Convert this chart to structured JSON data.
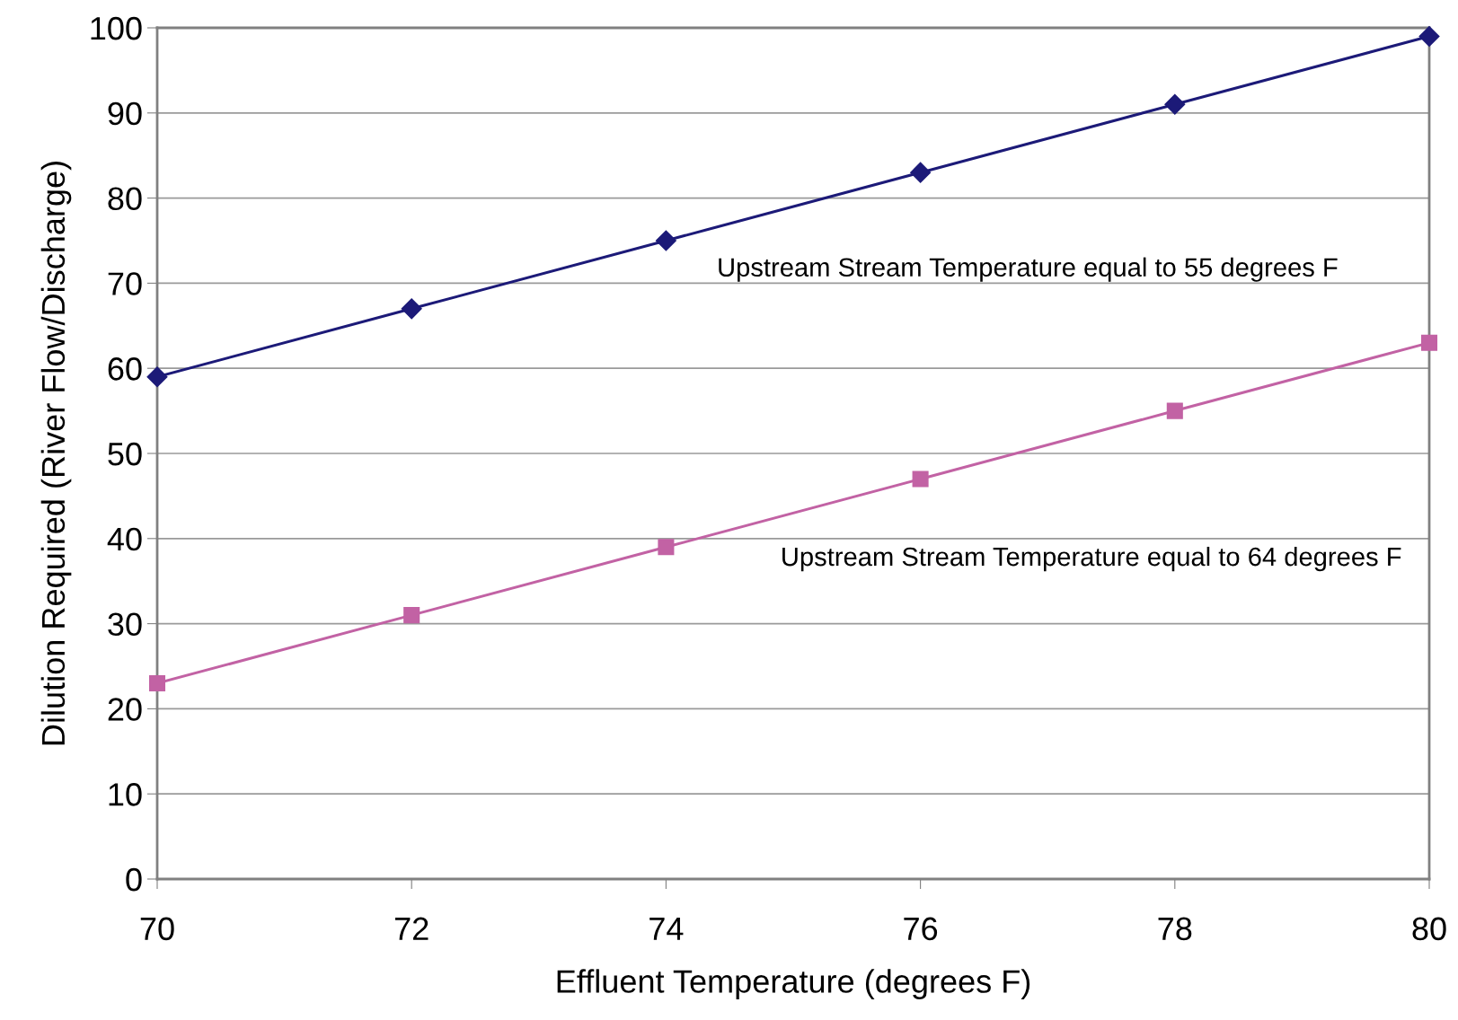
{
  "chart_data": {
    "type": "line",
    "xlabel": "Effluent Temperature (degrees F)",
    "ylabel": "Dilution Required (River Flow/Discharge)",
    "x": [
      70,
      72,
      74,
      76,
      78,
      80
    ],
    "series": [
      {
        "name": "Upstream Stream Temperature equal to 55 degrees F",
        "color": "#1c1a78",
        "marker": "diamond",
        "values": [
          59,
          67,
          75,
          83,
          91,
          99
        ]
      },
      {
        "name": "Upstream Stream Temperature equal to 64 degrees F",
        "color": "#c262a4",
        "marker": "square",
        "values": [
          23,
          31,
          39,
          47,
          55,
          63
        ]
      }
    ],
    "xlim": [
      70,
      80
    ],
    "xticks": [
      70,
      72,
      74,
      76,
      78,
      80
    ],
    "ylim": [
      0,
      100
    ],
    "yticks": [
      0,
      10,
      20,
      30,
      40,
      50,
      60,
      70,
      80,
      90,
      100
    ],
    "grid": "y",
    "legend": false,
    "line_style": "solid"
  }
}
